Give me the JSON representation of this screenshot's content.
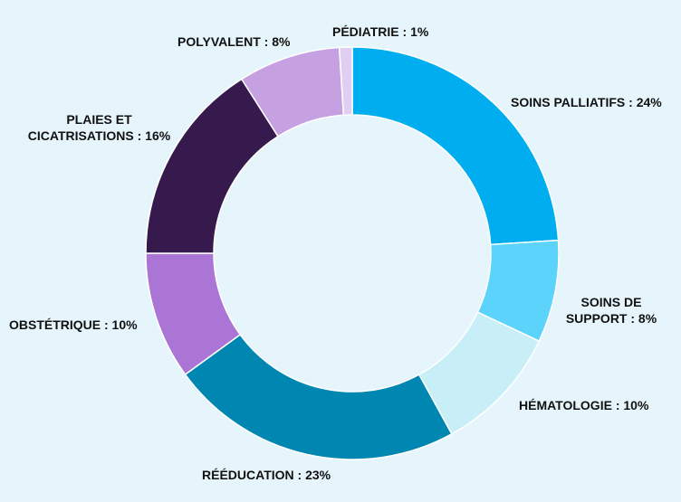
{
  "chart_data": {
    "type": "pie",
    "variant": "donut",
    "title": "",
    "slices": [
      {
        "label": "SOINS PALLIATIFS : 24%",
        "value": 24,
        "color": "#00aeef"
      },
      {
        "label": "SOINS DE SUPPORT : 8%",
        "value": 8,
        "color": "#5bd3fb"
      },
      {
        "label": "HÉMATOLOGIE : 10%",
        "value": 10,
        "color": "#c8eef8"
      },
      {
        "label": "RÉÉDUCATION : 23%",
        "value": 23,
        "color": "#0087b1"
      },
      {
        "label": "OBSTÉTRIQUE : 10%",
        "value": 10,
        "color": "#ab75d5"
      },
      {
        "label": "PLAIES ET CICATRISATIONS : 16%",
        "value": 16,
        "color": "#371a4d"
      },
      {
        "label": "POLYVALENT : 8%",
        "value": 8,
        "color": "#c6a1e2"
      },
      {
        "label": "PÉDIATRIE : 1%",
        "value": 1,
        "color": "#e0cff3"
      }
    ]
  },
  "labels": {
    "soins_palliatifs": "SOINS PALLIATIFS : 24%",
    "soins_de_support_1": "SOINS DE",
    "soins_de_support_2": "SUPPORT : 8%",
    "hematologie": "HÉMATOLOGIE : 10%",
    "reeducation": "RÉÉDUCATION : 23%",
    "obstetrique": "OBSTÉTRIQUE : 10%",
    "plaies_1": "PLAIES ET",
    "plaies_2": "CICATRISATIONS : 16%",
    "polyvalent": "POLYVALENT : 8%",
    "pediatrie": "PÉDIATRIE : 1%"
  }
}
